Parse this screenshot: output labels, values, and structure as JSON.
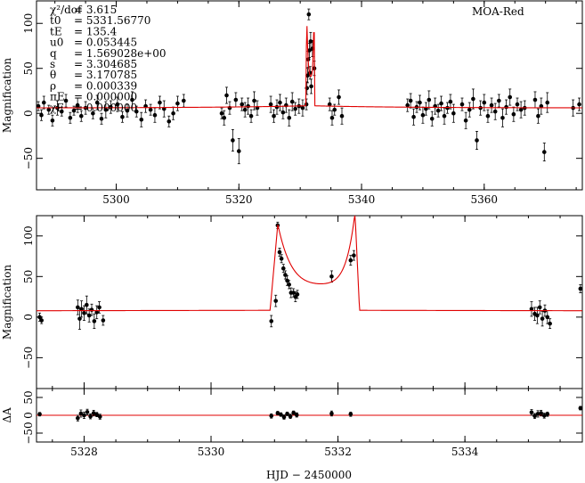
{
  "chart_data": [
    {
      "type": "scatter",
      "panel": "top",
      "label": "MOA-Red",
      "ylabel": "Magnification",
      "xlim": [
        5287,
        5376
      ],
      "ylim": [
        -85,
        125
      ],
      "xticks": [
        5300,
        5320,
        5340,
        5360
      ],
      "yticks": [
        -50,
        0,
        50,
        100
      ],
      "params": [
        {
          "name": "χ²/dof",
          "value": "= 3.615"
        },
        {
          "name": "t0",
          "value": "= 5331.56770"
        },
        {
          "name": "tE",
          "value": "= 135.4"
        },
        {
          "name": "u0",
          "value": "= 0.053445"
        },
        {
          "name": "q",
          "value": "= 1.569028e+00"
        },
        {
          "name": "s",
          "value": "= 3.304685"
        },
        {
          "name": "θ",
          "value": "= 3.170785"
        },
        {
          "name": "ρ",
          "value": "= 0.000339"
        },
        {
          "name": "πE",
          "value": "= 0.000000"
        },
        {
          "name": "χE",
          "value": "= 0.000000"
        }
      ],
      "series": [
        {
          "x": [
            5287.3,
            5287.8,
            5288.2,
            5289.0,
            5289.6,
            5290.4,
            5291.1,
            5291.8,
            5292.5,
            5293.1,
            5293.7,
            5294.3,
            5295.0,
            5296.2,
            5296.9,
            5297.6,
            5298.3,
            5299.1,
            5300.2,
            5301.0,
            5301.8,
            5302.6,
            5303.3,
            5304.1,
            5304.8,
            5305.6,
            5306.3,
            5307.1,
            5307.8,
            5308.6,
            5309.3,
            5310.0,
            5311.0,
            5317.2,
            5317.6,
            5318.0,
            5318.5,
            5319.0,
            5319.5,
            5320.0,
            5320.5,
            5321.0,
            5321.5,
            5322.0,
            5322.5,
            5323.0,
            5325.2,
            5325.7,
            5326.2,
            5326.7,
            5327.2,
            5327.7,
            5328.2,
            5328.7,
            5329.2,
            5329.8,
            5330.4,
            5331.0,
            5331.1,
            5331.2,
            5331.3,
            5331.4,
            5331.5,
            5331.6,
            5331.7,
            5331.8,
            5332.0,
            5332.3,
            5334.8,
            5335.2,
            5335.6,
            5336.3,
            5336.8,
            5347.5,
            5348.0,
            5348.5,
            5349.0,
            5349.5,
            5350.0,
            5350.5,
            5351.0,
            5351.5,
            5352.0,
            5352.5,
            5353.0,
            5353.5,
            5354.0,
            5354.5,
            5355.0,
            5356.4,
            5357.0,
            5357.6,
            5358.2,
            5358.8,
            5359.4,
            5360.0,
            5360.6,
            5361.2,
            5361.8,
            5362.4,
            5363.0,
            5363.6,
            5364.2,
            5364.8,
            5365.4,
            5366.0,
            5366.6,
            5368.3,
            5368.8,
            5369.3,
            5369.8,
            5370.3,
            5374.5,
            5375.5
          ],
          "y": [
            8,
            -2,
            12,
            4,
            -8,
            6,
            2,
            14,
            -5,
            3,
            9,
            -3,
            6,
            0,
            12,
            -6,
            4,
            7,
            10,
            -4,
            3,
            15,
            2,
            -7,
            8,
            4,
            -2,
            12,
            5,
            -9,
            0,
            11,
            14,
            0,
            -5,
            20,
            6,
            -30,
            15,
            -42,
            10,
            4,
            8,
            -3,
            14,
            6,
            10,
            -3,
            7,
            12,
            1,
            9,
            -5,
            13,
            5,
            8,
            6,
            10,
            28,
            42,
            60,
            110,
            70,
            45,
            80,
            30,
            72,
            50,
            10,
            -5,
            4,
            18,
            -3,
            9,
            14,
            -4,
            7,
            12,
            -2,
            5,
            15,
            -6,
            8,
            3,
            11,
            -3,
            6,
            13,
            0,
            10,
            -8,
            4,
            16,
            -30,
            6,
            12,
            -3,
            9,
            2,
            14,
            -5,
            7,
            18,
            -1,
            10,
            4,
            6,
            15,
            -3,
            8,
            -43,
            12,
            6,
            10
          ],
          "yerr": [
            5,
            6,
            7,
            5,
            6,
            8,
            5,
            7,
            6,
            5,
            8,
            6,
            7,
            6,
            8,
            6,
            9,
            7,
            8,
            6,
            7,
            9,
            6,
            8,
            7,
            6,
            8,
            7,
            9,
            6,
            7,
            8,
            7,
            6,
            8,
            9,
            7,
            12,
            8,
            14,
            7,
            8,
            9,
            7,
            10,
            8,
            9,
            7,
            8,
            9,
            7,
            8,
            9,
            10,
            7,
            8,
            9,
            6,
            7,
            8,
            9,
            6,
            8,
            7,
            10,
            8,
            9,
            8,
            7,
            8,
            6,
            8,
            9,
            7,
            8,
            9,
            6,
            8,
            9,
            7,
            10,
            8,
            9,
            7,
            8,
            9,
            6,
            8,
            10,
            7,
            9,
            8,
            11,
            10,
            8,
            9,
            7,
            8,
            9,
            7,
            10,
            8,
            9,
            8,
            7,
            9,
            8,
            9,
            8,
            9,
            10,
            11,
            9,
            7
          ]
        }
      ]
    },
    {
      "type": "scatter",
      "panel": "middle",
      "ylabel": "Magnification",
      "xlim": [
        5327.25,
        5335.85
      ],
      "ylim": [
        -88,
        125
      ],
      "xticks": [
        5328,
        5330,
        5332,
        5334
      ],
      "yticks": [
        -50,
        0,
        50,
        100
      ],
      "series": [
        {
          "x": [
            5327.3,
            5327.33,
            5327.9,
            5327.93,
            5327.96,
            5328.0,
            5328.04,
            5328.08,
            5328.12,
            5328.16,
            5328.2,
            5328.24,
            5328.3,
            5330.95,
            5331.02,
            5331.05,
            5331.08,
            5331.11,
            5331.14,
            5331.17,
            5331.2,
            5331.23,
            5331.26,
            5331.3,
            5331.33,
            5331.36,
            5331.9,
            5332.2,
            5332.25,
            5335.05,
            5335.1,
            5335.14,
            5335.18,
            5335.22,
            5335.26,
            5335.3,
            5335.34,
            5335.82
          ],
          "y": [
            0,
            -4,
            12,
            -2,
            10,
            5,
            15,
            2,
            9,
            -5,
            6,
            12,
            -4,
            -5,
            20,
            113,
            80,
            72,
            60,
            52,
            45,
            40,
            30,
            30,
            25,
            28,
            50,
            70,
            76,
            10,
            4,
            2,
            12,
            -2,
            8,
            0,
            -8,
            35
          ],
          "yerr": [
            5,
            4,
            9,
            13,
            10,
            9,
            11,
            8,
            7,
            9,
            8,
            7,
            6,
            7,
            7,
            4,
            5,
            5,
            5,
            5,
            6,
            5,
            6,
            5,
            6,
            5,
            7,
            6,
            6,
            9,
            8,
            10,
            8,
            9,
            7,
            8,
            6,
            5
          ]
        }
      ]
    },
    {
      "type": "scatter",
      "panel": "residual",
      "ylabel": "ΔA",
      "xlabel": "HJD − 2450000",
      "xlim": [
        5327.25,
        5335.85
      ],
      "ylim": [
        -75,
        75
      ],
      "xticks": [
        5328,
        5330,
        5332,
        5334
      ],
      "yticks": [
        -50,
        0,
        50
      ],
      "ytick_labels": [
        "−50",
        "0",
        "50"
      ],
      "series": [
        {
          "x": [
            5327.3,
            5327.9,
            5327.95,
            5328.0,
            5328.05,
            5328.1,
            5328.15,
            5328.2,
            5328.25,
            5330.95,
            5331.05,
            5331.1,
            5331.15,
            5331.2,
            5331.25,
            5331.3,
            5331.35,
            5331.9,
            5332.2,
            5335.05,
            5335.1,
            5335.15,
            5335.2,
            5335.25,
            5335.3,
            5335.82
          ],
          "y": [
            3,
            -8,
            5,
            0,
            9,
            -3,
            6,
            2,
            -4,
            -2,
            6,
            2,
            -5,
            4,
            -3,
            7,
            1,
            5,
            3,
            8,
            -2,
            4,
            6,
            -1,
            3,
            20
          ],
          "yerr": [
            5,
            8,
            10,
            9,
            8,
            7,
            8,
            6,
            7,
            6,
            5,
            5,
            6,
            5,
            6,
            5,
            6,
            7,
            6,
            8,
            7,
            9,
            8,
            7,
            6,
            5
          ]
        }
      ]
    }
  ]
}
